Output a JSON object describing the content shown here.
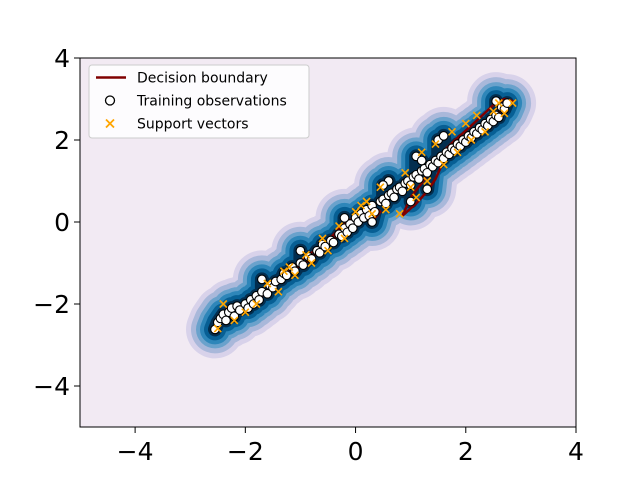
{
  "chart_data": {
    "type": "scatter",
    "title": "",
    "xlabel": "",
    "ylabel": "",
    "xlim": [
      -5,
      4
    ],
    "ylim": [
      -5,
      4
    ],
    "xticks": [
      -4,
      -2,
      0,
      2,
      4
    ],
    "yticks": [
      -4,
      -2,
      0,
      2,
      4
    ],
    "xtick_labels": [
      "−4",
      "−2",
      "0",
      "2",
      "4"
    ],
    "ytick_labels": [
      "−4",
      "−2",
      "0",
      "2",
      "4"
    ],
    "grid": false,
    "legend_position": "top-left",
    "legend": [
      {
        "label": "Decision boundary",
        "marker": "line",
        "color": "#800000"
      },
      {
        "label": "Training observations",
        "marker": "open-circle",
        "color": "#000000"
      },
      {
        "label": "Support vectors",
        "marker": "x",
        "color": "#FFA500"
      }
    ],
    "background_color": "#F2EAF3",
    "density_colors": [
      "#D8D2EA",
      "#A9B8DA",
      "#6AA2CC",
      "#2E86B9",
      "#075F94",
      "#032E4F"
    ],
    "training_observations": [
      [
        -2.55,
        -2.62
      ],
      [
        -2.5,
        -2.45
      ],
      [
        -2.45,
        -2.35
      ],
      [
        -2.4,
        -2.25
      ],
      [
        -2.35,
        -2.4
      ],
      [
        -2.3,
        -2.2
      ],
      [
        -2.25,
        -2.1
      ],
      [
        -2.2,
        -2.3
      ],
      [
        -2.15,
        -2.05
      ],
      [
        -2.1,
        -2.15
      ],
      [
        -2.0,
        -2.0
      ],
      [
        -1.95,
        -2.1
      ],
      [
        -1.9,
        -1.9
      ],
      [
        -1.85,
        -2.0
      ],
      [
        -1.8,
        -1.8
      ],
      [
        -1.75,
        -1.9
      ],
      [
        -1.7,
        -1.7
      ],
      [
        -1.6,
        -1.75
      ],
      [
        -1.55,
        -1.55
      ],
      [
        -1.5,
        -1.6
      ],
      [
        -1.45,
        -1.45
      ],
      [
        -1.35,
        -1.4
      ],
      [
        -1.3,
        -1.25
      ],
      [
        -1.25,
        -1.3
      ],
      [
        -1.15,
        -1.1
      ],
      [
        -1.1,
        -1.2
      ],
      [
        -1.0,
        -1.0
      ],
      [
        -0.95,
        -1.05
      ],
      [
        -0.85,
        -0.85
      ],
      [
        -0.8,
        -0.9
      ],
      [
        -0.7,
        -0.7
      ],
      [
        -0.65,
        -0.75
      ],
      [
        -0.6,
        -0.55
      ],
      [
        -0.55,
        -0.6
      ],
      [
        -0.45,
        -0.45
      ],
      [
        -0.4,
        -0.5
      ],
      [
        -0.3,
        -0.3
      ],
      [
        -0.25,
        -0.35
      ],
      [
        -0.2,
        -0.15
      ],
      [
        -0.15,
        -0.25
      ],
      [
        -0.1,
        -0.05
      ],
      [
        -0.05,
        -0.15
      ],
      [
        0.0,
        0.1
      ],
      [
        0.05,
        0.0
      ],
      [
        0.1,
        0.2
      ],
      [
        0.15,
        0.1
      ],
      [
        0.2,
        0.3
      ],
      [
        0.25,
        0.15
      ],
      [
        0.3,
        0.4
      ],
      [
        0.35,
        0.25
      ],
      [
        0.45,
        0.5
      ],
      [
        0.5,
        0.55
      ],
      [
        0.55,
        0.45
      ],
      [
        0.6,
        0.65
      ],
      [
        0.65,
        0.7
      ],
      [
        0.7,
        0.6
      ],
      [
        0.75,
        0.8
      ],
      [
        0.8,
        0.85
      ],
      [
        0.85,
        0.75
      ],
      [
        0.9,
        0.95
      ],
      [
        0.95,
        1.0
      ],
      [
        1.0,
        0.9
      ],
      [
        1.05,
        1.1
      ],
      [
        1.1,
        1.15
      ],
      [
        1.15,
        1.05
      ],
      [
        1.2,
        1.25
      ],
      [
        1.25,
        1.3
      ],
      [
        1.3,
        1.2
      ],
      [
        1.35,
        1.4
      ],
      [
        1.4,
        1.35
      ],
      [
        1.45,
        1.5
      ],
      [
        1.5,
        1.45
      ],
      [
        1.55,
        1.6
      ],
      [
        1.6,
        1.55
      ],
      [
        1.65,
        1.7
      ],
      [
        1.7,
        1.65
      ],
      [
        1.75,
        1.8
      ],
      [
        1.8,
        1.75
      ],
      [
        1.85,
        1.9
      ],
      [
        1.9,
        1.85
      ],
      [
        1.95,
        2.0
      ],
      [
        2.0,
        1.95
      ],
      [
        2.05,
        2.1
      ],
      [
        2.1,
        2.05
      ],
      [
        2.15,
        2.2
      ],
      [
        2.2,
        2.15
      ],
      [
        2.25,
        2.3
      ],
      [
        2.3,
        2.25
      ],
      [
        2.35,
        2.4
      ],
      [
        2.4,
        2.35
      ],
      [
        2.45,
        2.5
      ],
      [
        2.5,
        2.45
      ],
      [
        2.55,
        2.6
      ],
      [
        2.6,
        2.55
      ],
      [
        2.65,
        2.8
      ],
      [
        2.55,
        2.95
      ],
      [
        2.7,
        2.75
      ],
      [
        2.75,
        2.9
      ],
      [
        0.6,
        1.0
      ],
      [
        0.5,
        0.9
      ],
      [
        1.1,
        1.6
      ],
      [
        1.2,
        1.5
      ],
      [
        1.5,
        2.0
      ],
      [
        1.6,
        2.1
      ],
      [
        1.0,
        0.5
      ],
      [
        1.3,
        0.8
      ],
      [
        -0.2,
        0.1
      ],
      [
        0.3,
        0.0
      ],
      [
        -1.0,
        -0.7
      ],
      [
        -1.7,
        -1.4
      ]
    ],
    "support_vectors": [
      [
        -2.5,
        -2.6
      ],
      [
        -2.4,
        -2.0
      ],
      [
        -2.2,
        -2.4
      ],
      [
        -2.0,
        -2.2
      ],
      [
        -1.8,
        -2.0
      ],
      [
        -1.6,
        -1.5
      ],
      [
        -1.4,
        -1.7
      ],
      [
        -1.2,
        -1.1
      ],
      [
        -1.1,
        -1.3
      ],
      [
        -0.9,
        -0.8
      ],
      [
        -0.8,
        -1.0
      ],
      [
        -0.6,
        -0.4
      ],
      [
        -0.5,
        -0.7
      ],
      [
        -0.3,
        -0.1
      ],
      [
        -0.2,
        -0.4
      ],
      [
        0.0,
        0.25
      ],
      [
        0.2,
        0.5
      ],
      [
        0.3,
        0.2
      ],
      [
        0.45,
        0.85
      ],
      [
        0.55,
        0.3
      ],
      [
        0.8,
        0.2
      ],
      [
        0.9,
        1.2
      ],
      [
        1.1,
        0.6
      ],
      [
        1.2,
        1.7
      ],
      [
        1.3,
        1.0
      ],
      [
        1.45,
        1.9
      ],
      [
        1.6,
        1.4
      ],
      [
        1.75,
        2.2
      ],
      [
        1.85,
        1.7
      ],
      [
        2.0,
        2.4
      ],
      [
        2.1,
        2.0
      ],
      [
        2.2,
        2.6
      ],
      [
        2.35,
        2.2
      ],
      [
        2.5,
        2.7
      ],
      [
        2.6,
        2.9
      ],
      [
        2.7,
        2.65
      ],
      [
        2.85,
        2.9
      ],
      [
        -1.3,
        -1.2
      ],
      [
        0.1,
        0.4
      ],
      [
        1.0,
        0.85
      ]
    ],
    "decision_boundary": [
      [
        [
          -2.35,
          -2.1
        ],
        [
          -2.1,
          -2.0
        ],
        [
          -1.8,
          -1.9
        ],
        [
          -1.6,
          -1.7
        ],
        [
          -1.3,
          -1.4
        ],
        [
          -1.1,
          -1.15
        ],
        [
          -0.85,
          -0.95
        ],
        [
          -0.6,
          -0.6
        ],
        [
          -0.4,
          -0.4
        ],
        [
          -0.2,
          -0.25
        ],
        [
          0.0,
          -0.05
        ],
        [
          0.2,
          0.05
        ],
        [
          0.35,
          0.1
        ],
        [
          0.45,
          0.25
        ],
        [
          0.35,
          0.35
        ],
        [
          0.15,
          0.3
        ],
        [
          -0.05,
          0.1
        ],
        [
          -0.25,
          -0.1
        ],
        [
          -0.5,
          -0.45
        ],
        [
          -0.75,
          -0.7
        ],
        [
          -1.0,
          -0.95
        ],
        [
          -1.25,
          -1.25
        ],
        [
          -1.5,
          -1.55
        ],
        [
          -1.75,
          -1.8
        ],
        [
          -2.0,
          -2.1
        ],
        [
          -2.3,
          -2.3
        ],
        [
          -2.35,
          -2.1
        ]
      ],
      [
        [
          0.85,
          0.15
        ],
        [
          1.1,
          0.45
        ],
        [
          1.3,
          0.75
        ],
        [
          1.45,
          1.05
        ],
        [
          1.55,
          1.35
        ],
        [
          1.7,
          1.65
        ],
        [
          1.85,
          1.9
        ],
        [
          2.05,
          2.15
        ],
        [
          2.3,
          2.4
        ],
        [
          2.5,
          2.6
        ],
        [
          2.7,
          2.75
        ],
        [
          2.85,
          2.95
        ],
        [
          2.7,
          3.0
        ],
        [
          2.5,
          2.85
        ],
        [
          2.3,
          2.6
        ],
        [
          2.1,
          2.35
        ],
        [
          1.85,
          2.05
        ],
        [
          1.65,
          1.8
        ],
        [
          1.5,
          1.55
        ],
        [
          1.35,
          1.25
        ],
        [
          1.2,
          0.95
        ],
        [
          1.0,
          0.6
        ],
        [
          0.85,
          0.15
        ]
      ]
    ]
  }
}
